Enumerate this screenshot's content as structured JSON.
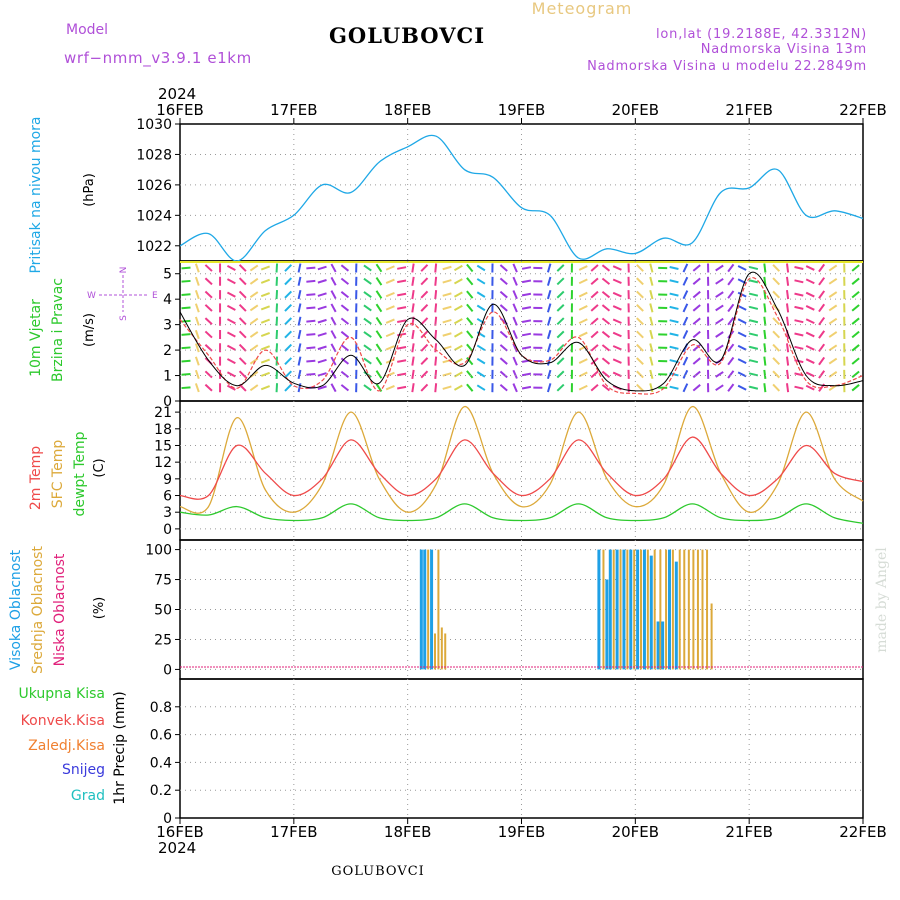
{
  "header": {
    "model_label": "Model",
    "model_value": "wrf−nmm_v3.9.1  e1km",
    "station": "GOLUBOVCI",
    "meteogram": "Meteogram",
    "lonlat": "lon,lat (19.2188E, 42.3312N)",
    "elevation": "Nadmorska Visina  13m",
    "model_elevation": "Nadmorska Visina u modelu 22.2849m"
  },
  "footer": {
    "station": "GOLUBOVCI",
    "credit": "made by Angel"
  },
  "time_axis": {
    "year": "2024",
    "labels": [
      "16FEB",
      "17FEB",
      "18FEB",
      "19FEB",
      "20FEB",
      "21FEB",
      "22FEB"
    ]
  },
  "panels": {
    "pressure": {
      "ylabel_main": "Pritisak na nivou mora",
      "unit": "(hPa)"
    },
    "wind": {
      "ylabel_1": "10m Vjetar",
      "ylabel_2": "Brzina i Pravac",
      "unit": "(m/s)",
      "compass_n": "N",
      "compass_s": "S",
      "compass_w": "W",
      "compass_e": "E"
    },
    "temp": {
      "l1": "2m Temp",
      "l2": "SFC Temp",
      "l3": "dewpt Temp",
      "unit": "(C)"
    },
    "cloud": {
      "l1": "Visoka Oblacnost",
      "l2": "Srednja Oblacnost",
      "l3": "Niska Oblacnost",
      "unit": "(%)"
    },
    "precip": {
      "legend": [
        "Ukupna Kisa",
        "Konvek.Kisa",
        "Zaledj.Kisa",
        "Snijeg",
        "Grad"
      ],
      "ylabel": "1hr Precip (mm)"
    }
  },
  "colors": {
    "pressure": "#1fa8e6",
    "t2m": "#ef4a4a",
    "sfc": "#dca93a",
    "dew": "#2dc92d",
    "high_cloud": "#1ea0e6",
    "mid_cloud": "#dca93a",
    "low_cloud": "#e0207a",
    "ukupna": "#2dc92d",
    "konvek": "#ef4a4a",
    "zaledj": "#f08030",
    "snijeg": "#3a3adc",
    "grad": "#20c0c0",
    "purple": "#b050d8",
    "gold": "#e8c880"
  },
  "chart_data": [
    {
      "type": "line",
      "name": "pressure",
      "x": [
        0,
        0.25,
        0.5,
        0.75,
        1,
        1.25,
        1.5,
        1.75,
        2,
        2.25,
        2.5,
        2.75,
        3,
        3.25,
        3.5,
        3.75,
        4,
        4.25,
        4.5,
        4.75,
        5,
        5.25,
        5.5,
        5.75,
        6
      ],
      "series": [
        {
          "values": [
            1022.0,
            1022.8,
            1021.0,
            1023.0,
            1024.0,
            1026.0,
            1025.5,
            1027.5,
            1028.5,
            1029.2,
            1027.0,
            1026.5,
            1024.5,
            1024.0,
            1021.2,
            1021.8,
            1021.5,
            1022.5,
            1022.2,
            1025.5,
            1025.8,
            1027.0,
            1024.0,
            1024.3,
            1023.8
          ]
        }
      ],
      "ylim": [
        1021,
        1030
      ],
      "yticks": [
        1022,
        1024,
        1026,
        1028,
        1030
      ]
    },
    {
      "type": "line",
      "name": "wind",
      "x": [
        0,
        0.25,
        0.5,
        0.75,
        1,
        1.25,
        1.5,
        1.75,
        2,
        2.25,
        2.5,
        2.75,
        3,
        3.25,
        3.5,
        3.75,
        4,
        4.25,
        4.5,
        4.75,
        5,
        5.25,
        5.5,
        5.75,
        6
      ],
      "series": [
        {
          "values": [
            3.2,
            1.8,
            0.5,
            2.0,
            0.6,
            0.8,
            2.5,
            0.4,
            3.0,
            2.0,
            1.5,
            3.5,
            1.8,
            1.6,
            2.5,
            0.6,
            0.3,
            0.5,
            2.2,
            1.5,
            4.8,
            3.3,
            0.8,
            0.6,
            1.0
          ]
        },
        {
          "values": [
            3.5,
            1.6,
            0.6,
            1.4,
            0.7,
            0.6,
            1.8,
            0.7,
            3.2,
            2.4,
            1.4,
            3.8,
            1.8,
            1.5,
            2.3,
            0.8,
            0.4,
            0.7,
            2.4,
            1.6,
            5.0,
            3.6,
            1.0,
            0.6,
            0.8
          ]
        }
      ],
      "ylim": [
        0,
        5.5
      ],
      "yticks": [
        0,
        1,
        2,
        3,
        4,
        5
      ]
    },
    {
      "type": "line",
      "name": "temperature",
      "x": [
        0,
        0.25,
        0.5,
        0.75,
        1,
        1.25,
        1.5,
        1.75,
        2,
        2.25,
        2.5,
        2.75,
        3,
        3.25,
        3.5,
        3.75,
        4,
        4.25,
        4.5,
        4.75,
        5,
        5.25,
        5.5,
        5.75,
        6
      ],
      "series": [
        {
          "values": [
            6,
            6,
            15,
            10,
            6,
            9,
            16,
            10,
            6,
            9,
            16,
            10,
            6,
            9,
            16,
            10,
            6,
            9,
            16.5,
            10,
            6,
            9,
            15,
            10,
            8.5
          ]
        },
        {
          "values": [
            4,
            4,
            20,
            7,
            3,
            8,
            21,
            9,
            3,
            8,
            22,
            10,
            4,
            8,
            21,
            9,
            4,
            8,
            22,
            10,
            3,
            8,
            21,
            9,
            5
          ]
        },
        {
          "values": [
            3,
            2.5,
            4,
            2,
            1.5,
            2,
            4.5,
            2,
            1.5,
            2,
            4.5,
            2,
            1.5,
            2,
            4.5,
            2,
            1.5,
            2,
            4.5,
            2,
            1.5,
            2,
            4.5,
            2,
            1
          ]
        }
      ],
      "ylim": [
        -2,
        23
      ],
      "yticks": [
        0,
        3,
        6,
        9,
        12,
        15,
        18,
        21
      ]
    },
    {
      "type": "bar",
      "name": "cloud",
      "bars": [
        {
          "t": 2.12,
          "v": 100,
          "s": "high"
        },
        {
          "t": 2.15,
          "v": 100,
          "s": "high"
        },
        {
          "t": 2.18,
          "v": 100,
          "s": "mid"
        },
        {
          "t": 2.21,
          "v": 100,
          "s": "high"
        },
        {
          "t": 2.24,
          "v": 30,
          "s": "mid"
        },
        {
          "t": 2.27,
          "v": 100,
          "s": "mid"
        },
        {
          "t": 2.3,
          "v": 35,
          "s": "mid"
        },
        {
          "t": 2.33,
          "v": 30,
          "s": "mid"
        },
        {
          "t": 3.68,
          "v": 100,
          "s": "high"
        },
        {
          "t": 3.72,
          "v": 100,
          "s": "mid"
        },
        {
          "t": 3.75,
          "v": 75,
          "s": "high"
        },
        {
          "t": 3.78,
          "v": 100,
          "s": "high"
        },
        {
          "t": 3.81,
          "v": 100,
          "s": "mid"
        },
        {
          "t": 3.84,
          "v": 100,
          "s": "high"
        },
        {
          "t": 3.87,
          "v": 100,
          "s": "mid"
        },
        {
          "t": 3.9,
          "v": 100,
          "s": "high"
        },
        {
          "t": 3.93,
          "v": 100,
          "s": "mid"
        },
        {
          "t": 3.96,
          "v": 100,
          "s": "high"
        },
        {
          "t": 3.99,
          "v": 100,
          "s": "mid"
        },
        {
          "t": 4.02,
          "v": 100,
          "s": "high"
        },
        {
          "t": 4.05,
          "v": 100,
          "s": "mid"
        },
        {
          "t": 4.08,
          "v": 100,
          "s": "high"
        },
        {
          "t": 4.11,
          "v": 100,
          "s": "mid"
        },
        {
          "t": 4.14,
          "v": 95,
          "s": "high"
        },
        {
          "t": 4.17,
          "v": 100,
          "s": "mid"
        },
        {
          "t": 4.2,
          "v": 40,
          "s": "high"
        },
        {
          "t": 4.22,
          "v": 100,
          "s": "mid"
        },
        {
          "t": 4.24,
          "v": 40,
          "s": "high"
        },
        {
          "t": 4.27,
          "v": 100,
          "s": "mid"
        },
        {
          "t": 4.3,
          "v": 100,
          "s": "high"
        },
        {
          "t": 4.33,
          "v": 100,
          "s": "mid"
        },
        {
          "t": 4.36,
          "v": 90,
          "s": "high"
        },
        {
          "t": 4.39,
          "v": 100,
          "s": "mid"
        },
        {
          "t": 4.43,
          "v": 100,
          "s": "mid"
        },
        {
          "t": 4.47,
          "v": 100,
          "s": "mid"
        },
        {
          "t": 4.51,
          "v": 100,
          "s": "mid"
        },
        {
          "t": 4.55,
          "v": 100,
          "s": "mid"
        },
        {
          "t": 4.59,
          "v": 100,
          "s": "mid"
        },
        {
          "t": 4.63,
          "v": 100,
          "s": "mid"
        },
        {
          "t": 4.67,
          "v": 55,
          "s": "mid"
        }
      ],
      "ylim": [
        -8,
        108
      ],
      "yticks": [
        0,
        25,
        50,
        75,
        100
      ]
    },
    {
      "type": "bar",
      "name": "precip",
      "values": [],
      "ylim": [
        0,
        1
      ],
      "yticks": [
        0,
        0.2,
        0.4,
        0.6,
        0.8
      ]
    }
  ]
}
